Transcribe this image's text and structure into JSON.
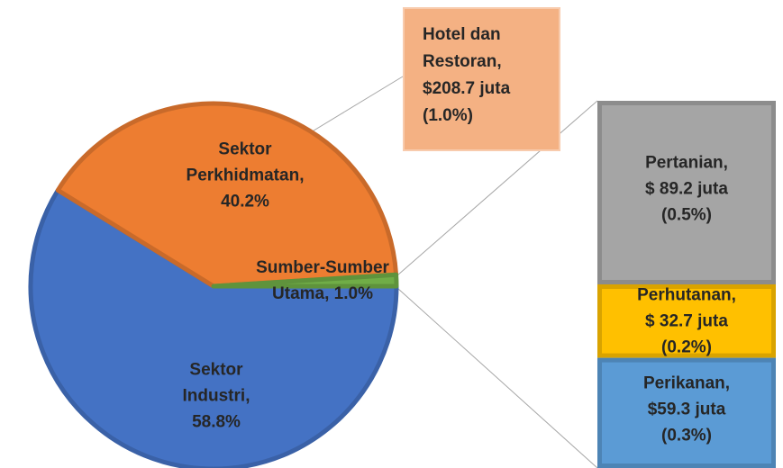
{
  "chart_data": {
    "type": "pie",
    "categories": [
      "Sektor Industri",
      "Sektor Perkhidmatan",
      "Sumber-Sumber Utama"
    ],
    "values": [
      58.8,
      40.2,
      1.0
    ],
    "value_labels": [
      "58.8%",
      "40.2%",
      "1.0%"
    ],
    "colors": [
      "#4472c4",
      "#ed7d31",
      "#70ad47"
    ],
    "breakdown": {
      "type": "bar",
      "categories": [
        "Pertanian",
        "Perhutanan",
        "Perikanan"
      ],
      "values": [
        0.5,
        0.2,
        0.3
      ],
      "value_labels": [
        "(0.5%)",
        "(0.2%)",
        "(0.3%)"
      ],
      "amount_labels": [
        "$ 89.2 juta",
        "$ 32.7 juta",
        "$59.3 juta"
      ],
      "colors": [
        "#a5a5a5",
        "#ffc000",
        "#5b9bd5"
      ]
    },
    "annotation": {
      "text": "Hotel dan Restoran",
      "amount_label": "$208.7 juta",
      "value_label": "(1.0%)"
    }
  }
}
